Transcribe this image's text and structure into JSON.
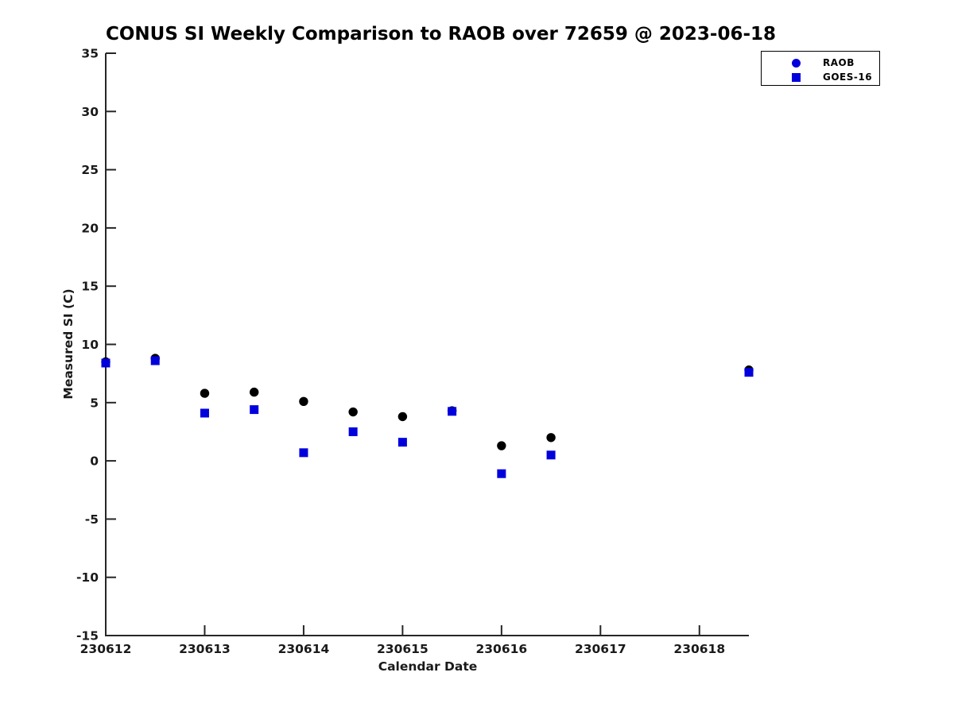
{
  "chart_data": {
    "type": "scatter",
    "title": "CONUS SI Weekly Comparison to RAOB over 72659 @ 2023-06-18",
    "xlabel": "Calendar Date",
    "ylabel": "Measured SI (C)",
    "xlim": [
      230612,
      230618.5
    ],
    "ylim": [
      -15,
      35
    ],
    "x_ticks": [
      230612,
      230613,
      230614,
      230615,
      230616,
      230617,
      230618
    ],
    "y_ticks": [
      35,
      30,
      25,
      20,
      15,
      10,
      5,
      0,
      -5,
      -10,
      -15
    ],
    "grid": false,
    "legend_position": "top-right",
    "series": [
      {
        "name": "RAOB",
        "marker": "circle",
        "plot_color": "#000000",
        "legend_color": "#0000dd",
        "x": [
          230612,
          230612.5,
          230613,
          230613.5,
          230614,
          230614.5,
          230615,
          230615.5,
          230616,
          230616.5,
          230618.5
        ],
        "y": [
          8.5,
          8.8,
          5.8,
          5.9,
          5.1,
          4.2,
          3.8,
          4.3,
          1.3,
          2.0,
          7.8
        ]
      },
      {
        "name": "GOES-16",
        "marker": "square",
        "plot_color": "#0000dd",
        "legend_color": "#0000dd",
        "x": [
          230612,
          230612.5,
          230613,
          230613.5,
          230614,
          230614.5,
          230615,
          230615.5,
          230616,
          230616.5,
          230618.5
        ],
        "y": [
          8.4,
          8.6,
          4.1,
          4.4,
          0.7,
          2.5,
          1.6,
          4.25,
          -1.1,
          0.5,
          7.6
        ]
      }
    ],
    "colors": {
      "axis": "#262626",
      "tick_label": "#1a1a1a",
      "title": "#000000"
    }
  }
}
